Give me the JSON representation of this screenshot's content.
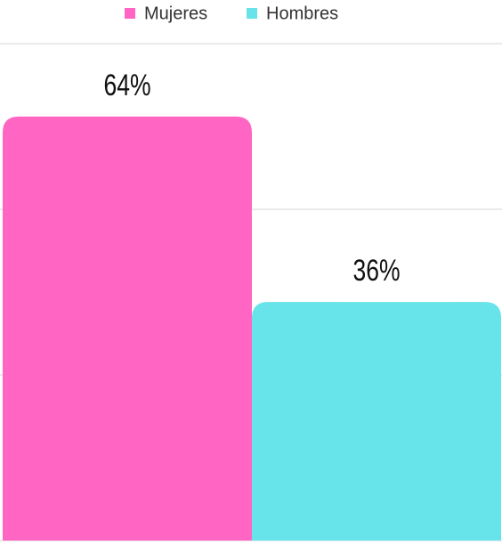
{
  "chart_data": {
    "type": "bar",
    "categories": [
      null
    ],
    "series": [
      {
        "name": "Mujeres",
        "color": "#ff66c4",
        "values": [
          64
        ],
        "value_labels": [
          "64%"
        ]
      },
      {
        "name": "Hombres",
        "color": "#67e4e9",
        "values": [
          36
        ],
        "value_labels": [
          "36%"
        ]
      }
    ],
    "ylim": [
      0,
      75
    ],
    "yticks": [
      0,
      25,
      50,
      75
    ],
    "grid": true,
    "legend": "top"
  }
}
